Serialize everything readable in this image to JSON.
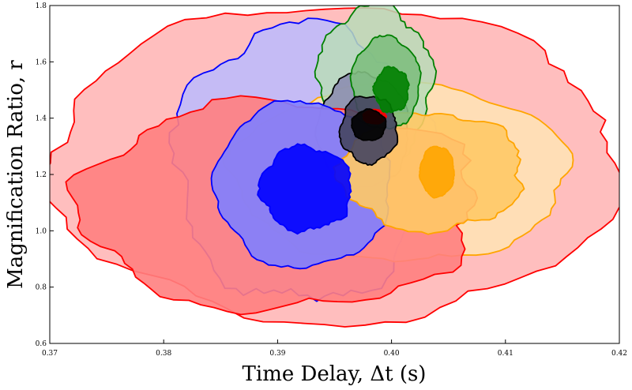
{
  "chart_data": {
    "type": "contour",
    "title": "",
    "xlabel": "Time Delay, Δt (s)",
    "ylabel": "Magnification Ratio, r",
    "xlim": [
      0.37,
      0.42
    ],
    "ylim": [
      0.6,
      1.8
    ],
    "xticks": [
      "0.37",
      "0.38",
      "0.39",
      "0.40",
      "0.41",
      "0.42"
    ],
    "yticks": [
      "0.6",
      "0.8",
      "1.0",
      "1.2",
      "1.4",
      "1.6",
      "1.8"
    ],
    "grid": false,
    "legend": "none",
    "series": [
      {
        "color": "#ff0000",
        "peak": [
          0.3925,
          1.14
        ],
        "contours": [
          {
            "level": "outer",
            "fill": "#ffb3b3",
            "x_range": [
              0.37,
              0.42
            ],
            "y_range": [
              0.68,
              1.8
            ]
          },
          {
            "level": "middle",
            "fill": "#ff7f7f",
            "x_range": [
              0.3725,
              0.4075
            ],
            "y_range": [
              0.72,
              1.46
            ]
          },
          {
            "level": "inner",
            "fill": "#ff0000",
            "x_range": [
              0.3975,
              0.3995
            ],
            "y_range": [
              1.38,
              1.43
            ]
          }
        ]
      },
      {
        "color": "#0000ff",
        "peak": [
          0.3925,
          1.14
        ],
        "contours": [
          {
            "level": "outer",
            "fill": "#bbbbff",
            "x_range": [
              0.381,
              0.4035
            ],
            "y_range": [
              0.75,
              1.73
            ]
          },
          {
            "level": "middle",
            "fill": "#7f7fff",
            "x_range": [
              0.3845,
              0.4
            ],
            "y_range": [
              0.87,
              1.46
            ]
          },
          {
            "level": "inner",
            "fill": "#0000ff",
            "x_range": [
              0.3885,
              0.3965
            ],
            "y_range": [
              1.0,
              1.3
            ]
          }
        ]
      },
      {
        "color": "#ffa500",
        "peak": [
          0.404,
          1.21
        ],
        "contours": [
          {
            "level": "outer",
            "fill": "#ffe4b5",
            "x_range": [
              0.386,
              0.4155
            ],
            "y_range": [
              0.89,
              1.52
            ]
          },
          {
            "level": "middle",
            "fill": "#ffc966",
            "x_range": [
              0.3955,
              0.4115
            ],
            "y_range": [
              1.0,
              1.42
            ]
          },
          {
            "level": "inner",
            "fill": "#ffa500",
            "x_range": [
              0.4025,
              0.4055
            ],
            "y_range": [
              1.12,
              1.3
            ]
          }
        ]
      },
      {
        "color": "#008000",
        "peak": [
          0.4005,
          1.5
        ],
        "contours": [
          {
            "level": "outer",
            "fill": "#b8dcb8",
            "x_range": [
              0.3935,
              0.4035
            ],
            "y_range": [
              1.25,
              1.8
            ]
          },
          {
            "level": "middle",
            "fill": "#7fbf7f",
            "x_range": [
              0.3965,
              0.4025
            ],
            "y_range": [
              1.36,
              1.69
            ]
          },
          {
            "level": "inner",
            "fill": "#008000",
            "x_range": [
              0.3985,
              0.4015
            ],
            "y_range": [
              1.42,
              1.58
            ]
          }
        ]
      },
      {
        "color": "#000000",
        "peak": [
          0.398,
          1.38
        ],
        "contours": [
          {
            "level": "outer",
            "fill": "#8a8ab0",
            "x_range": [
              0.3935,
              0.4015
            ],
            "y_range": [
              1.15,
              1.56
            ]
          },
          {
            "level": "middle",
            "fill": "#454560",
            "x_range": [
              0.3955,
              0.4005
            ],
            "y_range": [
              1.24,
              1.48
            ]
          },
          {
            "level": "inner",
            "fill": "#000000",
            "x_range": [
              0.3965,
              0.3995
            ],
            "y_range": [
              1.32,
              1.43
            ]
          }
        ]
      }
    ]
  }
}
